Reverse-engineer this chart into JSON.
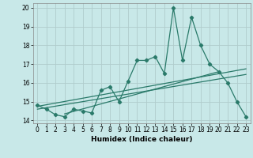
{
  "title": "",
  "xlabel": "Humidex (Indice chaleur)",
  "bg_color": "#c8e8e8",
  "grid_color": "#b0cccc",
  "line_color": "#2a7a6a",
  "xlim": [
    -0.5,
    23.5
  ],
  "ylim": [
    13.85,
    20.25
  ],
  "xticks": [
    0,
    1,
    2,
    3,
    4,
    5,
    6,
    7,
    8,
    9,
    10,
    11,
    12,
    13,
    14,
    15,
    16,
    17,
    18,
    19,
    20,
    21,
    22,
    23
  ],
  "yticks": [
    14,
    15,
    16,
    17,
    18,
    19,
    20
  ],
  "main_x": [
    0,
    1,
    2,
    3,
    4,
    5,
    6,
    7,
    8,
    9,
    10,
    11,
    12,
    13,
    14,
    15,
    16,
    17,
    18,
    19,
    20,
    21,
    22,
    23
  ],
  "main_y": [
    14.8,
    14.6,
    14.3,
    14.2,
    14.6,
    14.5,
    14.4,
    15.6,
    15.8,
    15.0,
    16.1,
    17.2,
    17.2,
    17.4,
    16.5,
    20.0,
    17.2,
    19.5,
    18.0,
    17.0,
    16.6,
    16.0,
    15.0,
    14.2
  ],
  "trend1_x": [
    0,
    23
  ],
  "trend1_y": [
    14.75,
    16.75
  ],
  "trend2_x": [
    0,
    23
  ],
  "trend2_y": [
    14.6,
    16.45
  ],
  "trend3_x": [
    3,
    20
  ],
  "trend3_y": [
    14.35,
    16.6
  ]
}
